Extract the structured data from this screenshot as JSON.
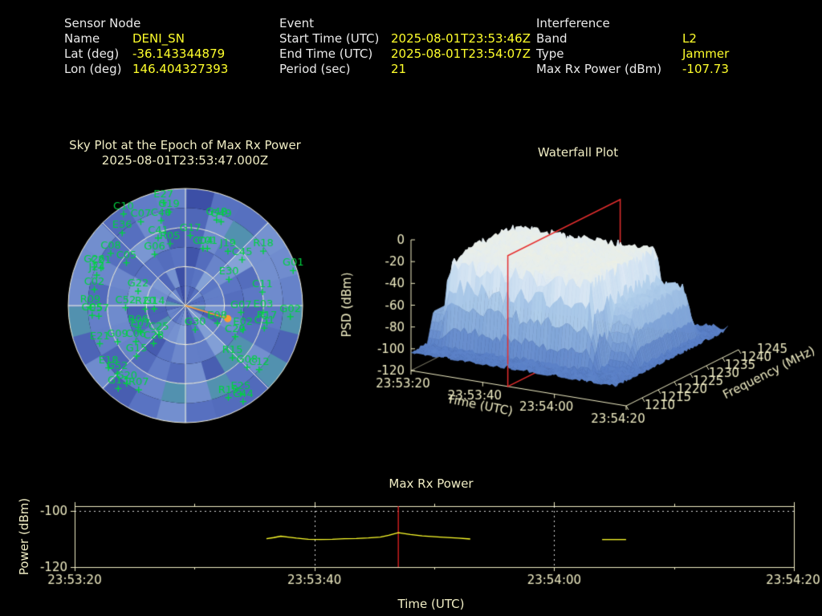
{
  "colors": {
    "background": "#000000",
    "label_text": "#eaeaea",
    "value_text": "#ffff2b",
    "plot_frame": "#f0edc4",
    "series_yellow": "#ffff2b",
    "epoch_red": "#e62222",
    "marker_orange": "#ff9d2e",
    "sat_green": "#00d341",
    "grid_dotted_white": "#d8d8d8"
  },
  "header": {
    "sensor": {
      "title": "Sensor Node",
      "rows": [
        {
          "label": "Name",
          "value": "DENI_SN"
        },
        {
          "label": "Lat (deg)",
          "value": "-36.143344879"
        },
        {
          "label": "Lon (deg)",
          "value": "146.404327393"
        }
      ]
    },
    "event": {
      "title": "Event",
      "rows": [
        {
          "label": "Start Time (UTC)",
          "value": "2025-08-01T23:53:46Z"
        },
        {
          "label": "End Time (UTC)",
          "value": "2025-08-01T23:54:07Z"
        },
        {
          "label": "Period (sec)",
          "value": "21"
        }
      ]
    },
    "interference": {
      "title": "Interference",
      "rows": [
        {
          "label": "Band",
          "value": "L2"
        },
        {
          "label": "Type",
          "value": "Jammer"
        },
        {
          "label": "Max Rx Power (dBm)",
          "value": "-107.73"
        }
      ]
    }
  },
  "chart_data": [
    {
      "type": "scatter",
      "subtype": "polar_sky",
      "title": "Sky Plot at the Epoch of Max Rx Power",
      "subtitle": "2025-08-01T23:53:47.000Z",
      "elevation_rings_deg": [
        0,
        30,
        60
      ],
      "azimuth_spokes_deg": [
        0,
        45,
        90,
        135,
        180,
        225,
        270,
        315
      ],
      "interference_marker": {
        "az": 107,
        "el": 56
      },
      "satellites": [
        {
          "id": "C10",
          "az": 326,
          "el": 5
        },
        {
          "id": "C07",
          "az": 332,
          "el": 17
        },
        {
          "id": "E27",
          "az": 348,
          "el": 9
        },
        {
          "id": "G19",
          "az": 350,
          "el": 17
        },
        {
          "id": "C40",
          "az": 344,
          "el": 22
        },
        {
          "id": "E36",
          "az": 319,
          "el": 16
        },
        {
          "id": "C41",
          "az": 338,
          "el": 34
        },
        {
          "id": "G17",
          "az": 4,
          "el": 36
        },
        {
          "id": "R05",
          "az": 346,
          "el": 41
        },
        {
          "id": "G48",
          "az": 20,
          "el": 20
        },
        {
          "id": "G49",
          "az": 23,
          "el": 20
        },
        {
          "id": "C08",
          "az": 305,
          "el": 20
        },
        {
          "id": "C05",
          "az": 306,
          "el": 34
        },
        {
          "id": "G06",
          "az": 329,
          "el": 44
        },
        {
          "id": "J19",
          "az": 38,
          "el": 37
        },
        {
          "id": "C04",
          "az": 17,
          "el": 44
        },
        {
          "id": "C01",
          "az": 21,
          "el": 43
        },
        {
          "id": "C45",
          "az": 51,
          "el": 34
        },
        {
          "id": "R18",
          "az": 55,
          "el": 17
        },
        {
          "id": "G01",
          "az": 72,
          "el": 3
        },
        {
          "id": "G26",
          "az": 293,
          "el": 14
        },
        {
          "id": "C21",
          "az": 294,
          "el": 19
        },
        {
          "id": "J24",
          "az": 289,
          "el": 18
        },
        {
          "id": "C02",
          "az": 280,
          "el": 19
        },
        {
          "id": "G22",
          "az": 287,
          "el": 52
        },
        {
          "id": "E30",
          "az": 59,
          "el": 51
        },
        {
          "id": "C11",
          "az": 80,
          "el": 30
        },
        {
          "id": "R09",
          "az": 269,
          "el": 17
        },
        {
          "id": "G05",
          "az": 264,
          "el": 18
        },
        {
          "id": "C57",
          "az": 263,
          "el": 23
        },
        {
          "id": "C52",
          "az": 268,
          "el": 44
        },
        {
          "id": "R20",
          "az": 265,
          "el": 59
        },
        {
          "id": "G14",
          "az": 264,
          "el": 66
        },
        {
          "id": "G07",
          "az": 97,
          "el": 47
        },
        {
          "id": "E03",
          "az": 95,
          "el": 30
        },
        {
          "id": "G02",
          "az": 96,
          "el": 9
        },
        {
          "id": "R17",
          "az": 102,
          "el": 26
        },
        {
          "id": "C31",
          "az": 106,
          "el": 27
        },
        {
          "id": "E02",
          "az": 113,
          "el": 42
        },
        {
          "id": "E08",
          "az": 119,
          "el": 62
        },
        {
          "id": "G30",
          "az": 158,
          "el": 70
        },
        {
          "id": "C29",
          "az": 122,
          "el": 45
        },
        {
          "id": "R06",
          "az": 245,
          "el": 50
        },
        {
          "id": "E07",
          "az": 240,
          "el": 50
        },
        {
          "id": "C25",
          "az": 223,
          "el": 60
        },
        {
          "id": "E21",
          "az": 246,
          "el": 18
        },
        {
          "id": "G09",
          "az": 242,
          "el": 31
        },
        {
          "id": "C06",
          "az": 234,
          "el": 43
        },
        {
          "id": "C28",
          "az": 220,
          "el": 52
        },
        {
          "id": "G15",
          "az": 224,
          "el": 36
        },
        {
          "id": "E18",
          "az": 231,
          "el": 14
        },
        {
          "id": "G52",
          "az": 225,
          "el": 16
        },
        {
          "id": "G20",
          "az": 217,
          "el": 15
        },
        {
          "id": "G13",
          "az": 219,
          "el": 8
        },
        {
          "id": "R07",
          "az": 209,
          "el": 16
        },
        {
          "id": "R15",
          "az": 138,
          "el": 36
        },
        {
          "id": "G08",
          "az": 135,
          "el": 23
        },
        {
          "id": "C12",
          "az": 131,
          "el": 15
        },
        {
          "id": "E25",
          "az": 148,
          "el": 10
        },
        {
          "id": "R19",
          "az": 155,
          "el": 12
        },
        {
          "id": "C44",
          "az": 149,
          "el": 4
        }
      ]
    },
    {
      "type": "heatmap",
      "subtype": "surface3d",
      "title": "Waterfall Plot",
      "xlabel": "Time (UTC)",
      "ylabel": "Frequency (MHz)",
      "zlabel": "PSD (dBm)",
      "z_ticks": [
        0,
        -20,
        -40,
        -60,
        -80,
        -100,
        -120
      ],
      "time_ticks": [
        "23:53:20",
        "23:53:40",
        "23:54:00",
        "23:54:20"
      ],
      "freq_ticks": [
        1210,
        1215,
        1220,
        1225,
        1230,
        1235,
        1240,
        1245
      ],
      "zlim": [
        -120,
        0
      ],
      "time_range_sec": [
        0,
        60
      ],
      "freq_range_mhz": [
        1210,
        1245
      ],
      "epoch_slice": {
        "time_utc": "23:53:47",
        "t_sec": 27
      },
      "surface_model": {
        "noise_floor_dbm": -104,
        "noise_floor_jitter_db": 9,
        "plateau": {
          "t_sec": [
            3,
            47
          ],
          "freq_mhz": [
            1216,
            1238.5
          ],
          "top_dbm": -22,
          "jitter_db": 5
        },
        "shoulder": {
          "t_sec": [
            43,
            54
          ],
          "freq_mhz": [
            1219,
            1241
          ],
          "top_dbm": -57,
          "jitter_db": 8
        },
        "back_step": {
          "t_sec": [
            0,
            4
          ],
          "top_dbm": -76
        }
      }
    },
    {
      "type": "line",
      "title": "Max Rx Power",
      "xlabel": "Time (UTC)",
      "ylabel": "Power (dBm)",
      "ylim": [
        -120,
        -98.3
      ],
      "y_ticks": [
        -100,
        -120
      ],
      "x_ticks": [
        {
          "t_sec": 0,
          "label": "23:53:20"
        },
        {
          "t_sec": 20,
          "label": "23:53:40"
        },
        {
          "t_sec": 40,
          "label": "23:54:00"
        },
        {
          "t_sec": 60,
          "label": "23:54:20"
        }
      ],
      "x_minor_ticks_sec": [
        10,
        30,
        50
      ],
      "threshold_dbm": -100,
      "gridlines_sec": [
        20,
        40
      ],
      "epoch_line_sec": 27,
      "series": [
        {
          "name": "max_rx_power",
          "points": [
            [
              16,
              -109.9
            ],
            [
              16.6,
              -109.5
            ],
            [
              17.2,
              -109.0
            ],
            [
              17.8,
              -109.3
            ],
            [
              18.5,
              -109.7
            ],
            [
              19.5,
              -110.1
            ],
            [
              20.5,
              -110.2
            ],
            [
              21.5,
              -110.1
            ],
            [
              22.5,
              -109.9
            ],
            [
              23.5,
              -109.8
            ],
            [
              24.5,
              -109.6
            ],
            [
              25.5,
              -109.3
            ],
            [
              26.2,
              -108.7
            ],
            [
              27,
              -107.73
            ],
            [
              28,
              -108.4
            ],
            [
              29,
              -108.9
            ],
            [
              30.5,
              -109.3
            ],
            [
              32,
              -109.7
            ],
            [
              33,
              -110.0
            ]
          ]
        },
        {
          "name": "max_rx_power_segment2",
          "points": [
            [
              44,
              -110.2
            ],
            [
              46,
              -110.2
            ]
          ]
        }
      ]
    }
  ]
}
